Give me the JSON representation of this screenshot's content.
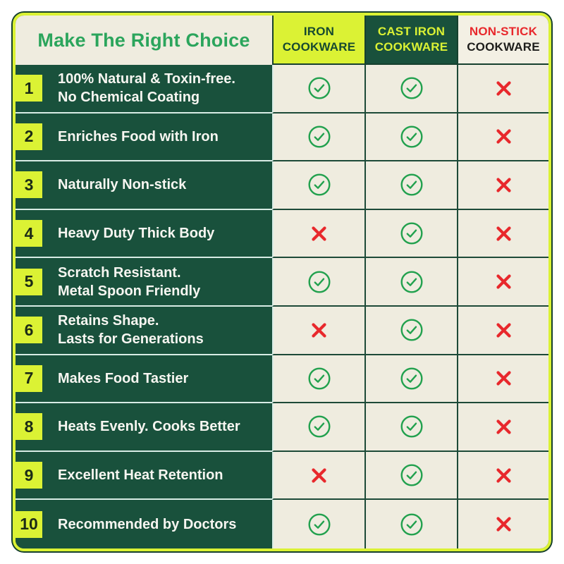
{
  "title": "Make The Right Choice",
  "columns": [
    {
      "line1": "IRON",
      "line2": "COOKWARE"
    },
    {
      "line1": "CAST IRON",
      "line2": "COOKWARE"
    },
    {
      "line1": "NON-STICK",
      "line2": "COOKWARE"
    }
  ],
  "rows": [
    {
      "num": "1",
      "feature": "100% Natural & Toxin-free.\nNo Chemical Coating",
      "marks": [
        "check",
        "check",
        "cross"
      ]
    },
    {
      "num": "2",
      "feature": "Enriches Food with Iron",
      "marks": [
        "check",
        "check",
        "cross"
      ]
    },
    {
      "num": "3",
      "feature": "Naturally Non-stick",
      "marks": [
        "check",
        "check",
        "cross"
      ]
    },
    {
      "num": "4",
      "feature": "Heavy Duty Thick Body",
      "marks": [
        "cross",
        "check",
        "cross"
      ]
    },
    {
      "num": "5",
      "feature": "Scratch Resistant.\nMetal Spoon Friendly",
      "marks": [
        "check",
        "check",
        "cross"
      ]
    },
    {
      "num": "6",
      "feature": "Retains Shape.\nLasts for Generations",
      "marks": [
        "cross",
        "check",
        "cross"
      ]
    },
    {
      "num": "7",
      "feature": "Makes Food Tastier",
      "marks": [
        "check",
        "check",
        "cross"
      ]
    },
    {
      "num": "8",
      "feature": "Heats Evenly. Cooks Better",
      "marks": [
        "check",
        "check",
        "cross"
      ]
    },
    {
      "num": "9",
      "feature": "Excellent Heat Retention",
      "marks": [
        "cross",
        "check",
        "cross"
      ]
    },
    {
      "num": "10",
      "feature": "Recommended by Doctors",
      "marks": [
        "check",
        "check",
        "cross"
      ]
    }
  ],
  "icons": {
    "check": "check-icon",
    "cross": "cross-icon"
  },
  "colors": {
    "dark_green": "#19513c",
    "cream": "#efecdf",
    "chartreuse": "#dbf234",
    "outline": "#16402e",
    "title_green": "#2ba55c",
    "check_green": "#22a14e",
    "cross_red": "#e8282c",
    "sep_light": "#d8ece5",
    "sep_dark": "#1d4a38"
  }
}
